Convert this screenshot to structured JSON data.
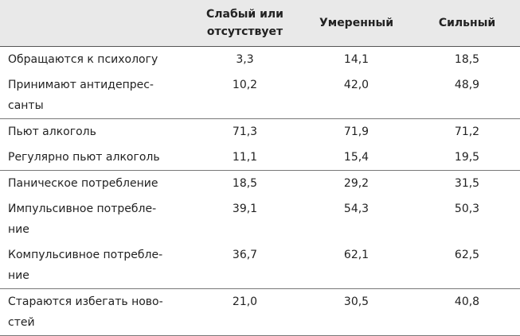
{
  "table": {
    "header": [
      "",
      "Слабый или\nотсутствует",
      "Умеренный",
      "Сильный"
    ],
    "groups": [
      [
        {
          "label": "Обращаются к психологу",
          "values": [
            "3,3",
            "14,1",
            "18,5"
          ]
        },
        {
          "label": "Принимают антидепрес-\nсанты",
          "values": [
            "10,2",
            "42,0",
            "48,9"
          ]
        }
      ],
      [
        {
          "label": "Пьют алкоголь",
          "values": [
            "71,3",
            "71,9",
            "71,2"
          ]
        },
        {
          "label": "Регулярно пьют алкоголь",
          "values": [
            "11,1",
            "15,4",
            "19,5"
          ]
        }
      ],
      [
        {
          "label": "Паническое потребление",
          "values": [
            "18,5",
            "29,2",
            "31,5"
          ]
        },
        {
          "label": "Импульсивное потребле-\nние",
          "values": [
            "39,1",
            "54,3",
            "50,3"
          ]
        },
        {
          "label": "Компульсивное потребле-\nние",
          "values": [
            "36,7",
            "62,1",
            "62,5"
          ]
        }
      ],
      [
        {
          "label": "Стараются избегать ново-\nстей",
          "values": [
            "21,0",
            "30,5",
            "40,8"
          ]
        }
      ]
    ]
  }
}
